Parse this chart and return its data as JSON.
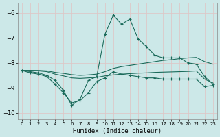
{
  "bg_color": "#cce8e8",
  "grid_color": "#ddc8c8",
  "line_color": "#1a6a5a",
  "xlim": [
    -0.5,
    23.5
  ],
  "ylim": [
    -10.25,
    -5.6
  ],
  "yticks": [
    -10,
    -9,
    -8,
    -7,
    -6
  ],
  "xlabel": "Humidex (Indice chaleur)",
  "line1_y": [
    -8.3,
    -8.35,
    -8.4,
    -8.5,
    -8.7,
    -9.1,
    -9.7,
    -9.45,
    -8.7,
    -8.55,
    -6.85,
    -6.1,
    -6.45,
    -6.25,
    -7.05,
    -7.35,
    -7.7,
    -7.8,
    -7.8,
    -7.8,
    -8.0,
    -8.05,
    -8.55,
    -8.85
  ],
  "line2_y": [
    -8.3,
    -8.4,
    -8.45,
    -8.55,
    -8.85,
    -9.2,
    -9.6,
    -9.5,
    -9.2,
    -8.75,
    -8.6,
    -8.35,
    -8.45,
    -8.5,
    -8.55,
    -8.6,
    -8.6,
    -8.65,
    -8.65,
    -8.65,
    -8.65,
    -8.65,
    -8.95,
    -8.9
  ],
  "line3_y": [
    -8.3,
    -8.3,
    -8.3,
    -8.32,
    -8.38,
    -8.42,
    -8.47,
    -8.5,
    -8.48,
    -8.45,
    -8.35,
    -8.22,
    -8.15,
    -8.1,
    -8.05,
    -8.0,
    -7.95,
    -7.9,
    -7.87,
    -7.83,
    -7.8,
    -7.78,
    -7.95,
    -8.05
  ],
  "line4_y": [
    -8.3,
    -8.3,
    -8.32,
    -8.35,
    -8.45,
    -8.52,
    -8.6,
    -8.62,
    -8.6,
    -8.58,
    -8.52,
    -8.48,
    -8.45,
    -8.43,
    -8.41,
    -8.4,
    -8.38,
    -8.37,
    -8.36,
    -8.35,
    -8.34,
    -8.32,
    -8.65,
    -8.8
  ]
}
